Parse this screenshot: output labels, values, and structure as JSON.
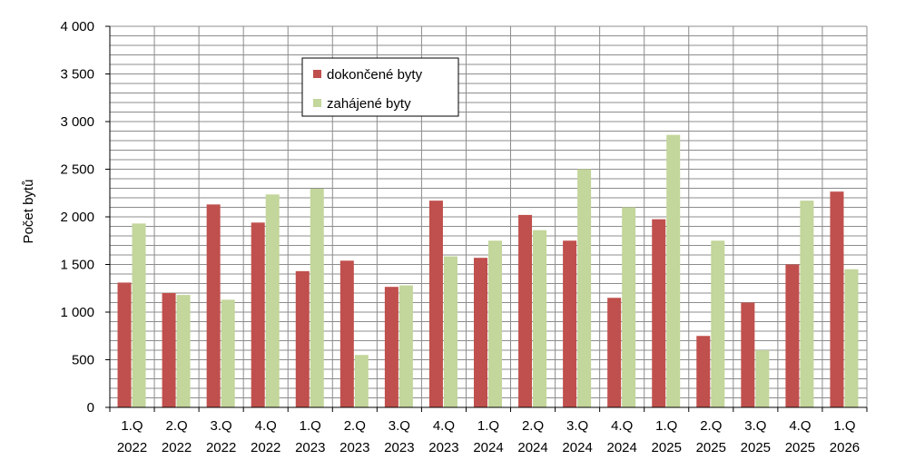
{
  "chart_data": {
    "type": "bar",
    "ylabel": "Počet bytů",
    "ylim": [
      0,
      4000
    ],
    "ytick_step": 500,
    "ytick_labels": [
      "0",
      "500",
      "1 000",
      "1 500",
      "2 000",
      "2 500",
      "3 000",
      "3 500",
      "4 000"
    ],
    "grid": true,
    "legend_position": "top-left (inside plot)",
    "categories": [
      [
        "1.Q",
        "2022"
      ],
      [
        "2.Q",
        "2022"
      ],
      [
        "3.Q",
        "2022"
      ],
      [
        "4.Q",
        "2022"
      ],
      [
        "1.Q",
        "2023"
      ],
      [
        "2.Q",
        "2023"
      ],
      [
        "3.Q",
        "2023"
      ],
      [
        "4.Q",
        "2023"
      ],
      [
        "1.Q",
        "2024"
      ],
      [
        "2.Q",
        "2024"
      ],
      [
        "3.Q",
        "2024"
      ],
      [
        "4.Q",
        "2024"
      ],
      [
        "1.Q",
        "2025"
      ],
      [
        "2.Q",
        "2025"
      ],
      [
        "3.Q",
        "2025"
      ],
      [
        "4.Q",
        "2025"
      ],
      [
        "1.Q",
        "2026"
      ]
    ],
    "series": [
      {
        "name": "dokončené byty",
        "color": "#c0504d",
        "values": [
          1310,
          1200,
          2130,
          1940,
          1430,
          1540,
          1265,
          2170,
          1570,
          2020,
          1750,
          1150,
          1975,
          750,
          1100,
          1500,
          2265
        ]
      },
      {
        "name": "zahájené byty",
        "color": "#c3d69b",
        "values": [
          1930,
          1180,
          1130,
          2235,
          2295,
          550,
          1280,
          1585,
          1750,
          1860,
          2500,
          2100,
          2860,
          1750,
          600,
          2170,
          1450
        ]
      }
    ]
  }
}
